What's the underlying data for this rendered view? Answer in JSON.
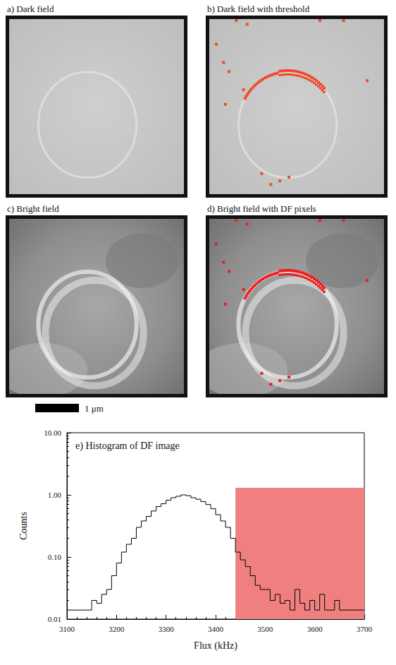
{
  "panels": [
    {
      "label": "a) Dark field"
    },
    {
      "label": "b) Dark field with threshold"
    },
    {
      "label": "c) Bright field"
    },
    {
      "label": "d) Bright field with DF pixels"
    }
  ],
  "scale_bar": "1 μm",
  "chart_data": {
    "type": "histogram",
    "title": "e) Histogram of DF image",
    "x_label": "Flux (kHz)",
    "y_label": "Counts",
    "bins": [
      3100,
      3110,
      3120,
      3130,
      3140,
      3150,
      3160,
      3170,
      3180,
      3190,
      3200,
      3210,
      3220,
      3230,
      3240,
      3250,
      3260,
      3270,
      3280,
      3290,
      3300,
      3310,
      3320,
      3330,
      3340,
      3350,
      3360,
      3370,
      3380,
      3390,
      3400,
      3410,
      3420,
      3430,
      3440,
      3450,
      3460,
      3470,
      3480,
      3490,
      3500,
      3510,
      3520,
      3530,
      3540,
      3550,
      3560,
      3570,
      3580,
      3590,
      3600,
      3610,
      3620,
      3630,
      3640,
      3650,
      3660,
      3670,
      3680,
      3690,
      3700
    ],
    "values": [
      0.014,
      0.014,
      0.014,
      0.014,
      0.014,
      0.02,
      0.018,
      0.025,
      0.03,
      0.05,
      0.08,
      0.12,
      0.16,
      0.2,
      0.3,
      0.38,
      0.45,
      0.55,
      0.65,
      0.72,
      0.82,
      0.9,
      0.95,
      1.0,
      0.97,
      0.9,
      0.85,
      0.78,
      0.7,
      0.6,
      0.48,
      0.38,
      0.3,
      0.2,
      0.12,
      0.09,
      0.07,
      0.05,
      0.035,
      0.03,
      0.03,
      0.02,
      0.025,
      0.018,
      0.02,
      0.014,
      0.03,
      0.018,
      0.014,
      0.02,
      0.014,
      0.025,
      0.014,
      0.014,
      0.02,
      0.014,
      0.014,
      0.014,
      0.014,
      0.014
    ],
    "color": "#000000",
    "log": "y",
    "xlim": [
      3100,
      3700
    ],
    "xticks": [
      3100,
      3200,
      3300,
      3400,
      3500,
      3600,
      3700
    ],
    "ylim": [
      0.01,
      10
    ],
    "yticks": [
      0.01,
      {
        "value": 0.1,
        "label": "0.10"
      },
      {
        "value": 1,
        "label": "1.00"
      },
      {
        "value": 10,
        "label": "10.00"
      }
    ],
    "threshold_region": {
      "x": [
        3440,
        3700
      ],
      "y": [
        0.01,
        1.3
      ],
      "color": "#f08080"
    }
  }
}
